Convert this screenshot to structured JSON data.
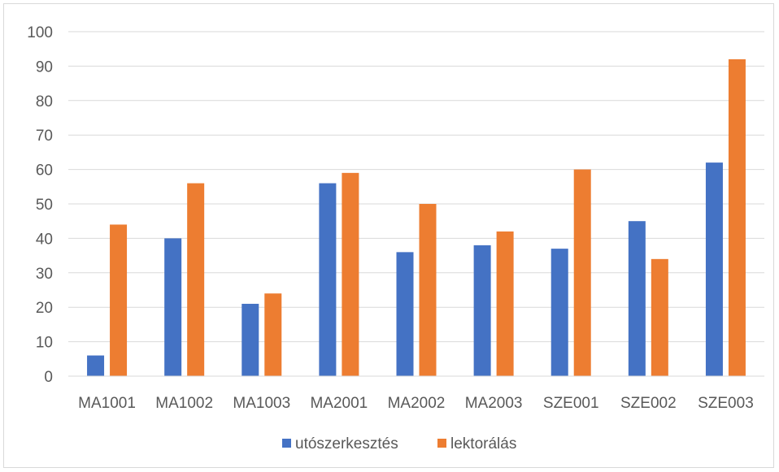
{
  "chart_data": {
    "type": "bar",
    "title": "",
    "xlabel": "",
    "ylabel": "",
    "categories": [
      "MA1001",
      "MA1002",
      "MA1003",
      "MA2001",
      "MA2002",
      "MA2003",
      "SZE001",
      "SZE002",
      "SZE003"
    ],
    "series": [
      {
        "name": "utószerkesztés",
        "color": "#4472C4",
        "values": [
          6,
          40,
          21,
          56,
          36,
          38,
          37,
          45,
          62
        ]
      },
      {
        "name": "lektorálás",
        "color": "#ED7D31",
        "values": [
          44,
          56,
          24,
          59,
          50,
          42,
          60,
          34,
          92
        ]
      }
    ],
    "ylim": [
      0,
      100
    ],
    "yticks": [
      0,
      10,
      20,
      30,
      40,
      50,
      60,
      70,
      80,
      90,
      100
    ],
    "grid": true,
    "legend": "bottom"
  }
}
